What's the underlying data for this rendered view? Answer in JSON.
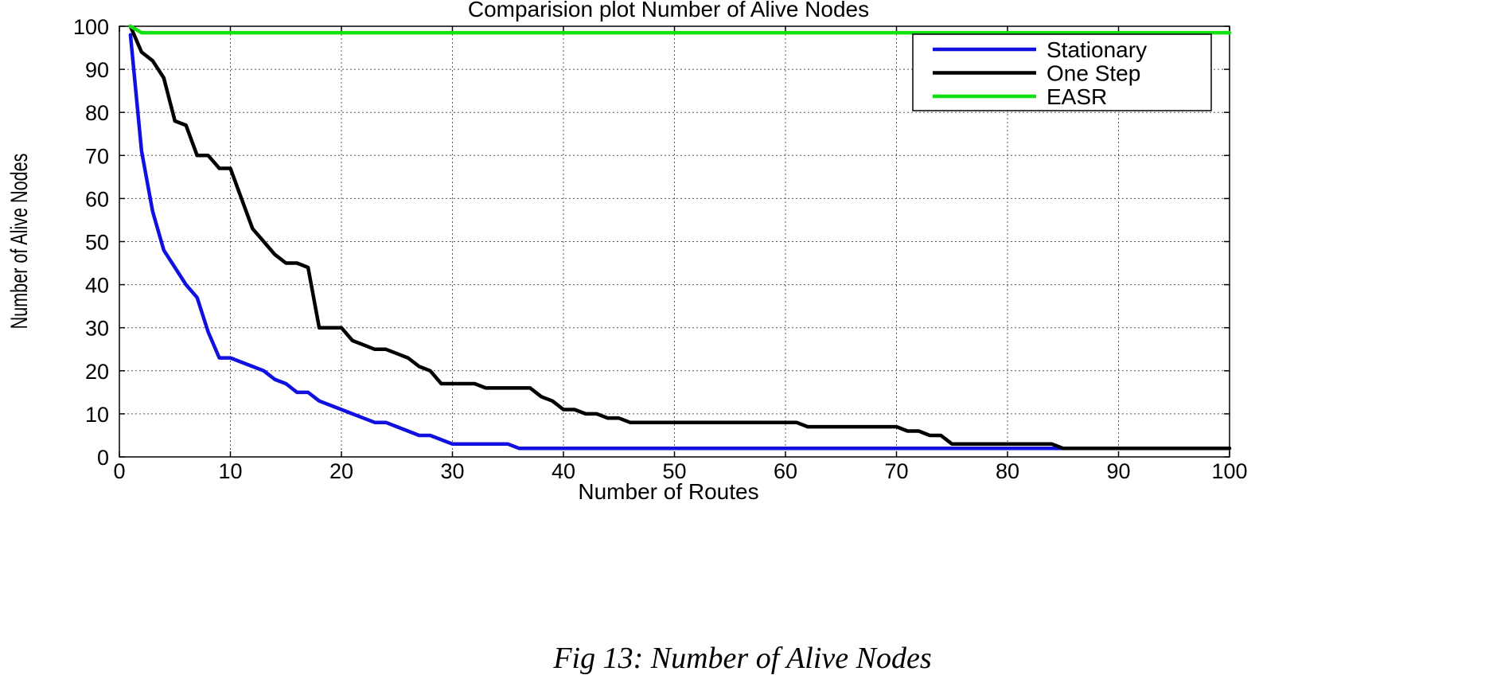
{
  "caption": "Fig 13: Number of Alive Nodes",
  "chart_data": {
    "type": "line",
    "title": "Comparision plot Number of Alive Nodes",
    "xlabel": "Number of Routes",
    "ylabel": "Number of Alive Nodes",
    "xlim": [
      0,
      100
    ],
    "ylim": [
      0,
      100
    ],
    "xticks": [
      0,
      10,
      20,
      30,
      40,
      50,
      60,
      70,
      80,
      90,
      100
    ],
    "yticks": [
      0,
      10,
      20,
      30,
      40,
      50,
      60,
      70,
      80,
      90,
      100
    ],
    "grid": true,
    "legend_position": "top-right",
    "series": [
      {
        "name": "Stationary",
        "color": "#1010e0",
        "points": [
          [
            1,
            98
          ],
          [
            2,
            71
          ],
          [
            3,
            57
          ],
          [
            4,
            48
          ],
          [
            5,
            44
          ],
          [
            6,
            40
          ],
          [
            7,
            37
          ],
          [
            8,
            29
          ],
          [
            9,
            23
          ],
          [
            10,
            23
          ],
          [
            11,
            22
          ],
          [
            12,
            21
          ],
          [
            13,
            20
          ],
          [
            14,
            18
          ],
          [
            15,
            17
          ],
          [
            16,
            15
          ],
          [
            17,
            15
          ],
          [
            18,
            13
          ],
          [
            19,
            12
          ],
          [
            20,
            11
          ],
          [
            21,
            10
          ],
          [
            22,
            9
          ],
          [
            23,
            8
          ],
          [
            24,
            8
          ],
          [
            25,
            7
          ],
          [
            26,
            6
          ],
          [
            27,
            5
          ],
          [
            28,
            5
          ],
          [
            29,
            4
          ],
          [
            30,
            3
          ],
          [
            31,
            3
          ],
          [
            35,
            3
          ],
          [
            36,
            2
          ],
          [
            100,
            2
          ]
        ]
      },
      {
        "name": "One Step",
        "color": "#000000",
        "points": [
          [
            1,
            100
          ],
          [
            2,
            94
          ],
          [
            3,
            92
          ],
          [
            4,
            88
          ],
          [
            5,
            78
          ],
          [
            6,
            77
          ],
          [
            7,
            70
          ],
          [
            8,
            70
          ],
          [
            9,
            67
          ],
          [
            10,
            67
          ],
          [
            11,
            60
          ],
          [
            12,
            53
          ],
          [
            13,
            50
          ],
          [
            14,
            47
          ],
          [
            15,
            45
          ],
          [
            16,
            45
          ],
          [
            17,
            44
          ],
          [
            18,
            30
          ],
          [
            19,
            30
          ],
          [
            20,
            30
          ],
          [
            21,
            27
          ],
          [
            22,
            26
          ],
          [
            23,
            25
          ],
          [
            24,
            25
          ],
          [
            25,
            24
          ],
          [
            26,
            23
          ],
          [
            27,
            21
          ],
          [
            28,
            20
          ],
          [
            29,
            17
          ],
          [
            30,
            17
          ],
          [
            32,
            17
          ],
          [
            33,
            16
          ],
          [
            37,
            16
          ],
          [
            38,
            14
          ],
          [
            39,
            13
          ],
          [
            40,
            11
          ],
          [
            41,
            11
          ],
          [
            42,
            10
          ],
          [
            43,
            10
          ],
          [
            44,
            9
          ],
          [
            45,
            9
          ],
          [
            46,
            8
          ],
          [
            61,
            8
          ],
          [
            62,
            7
          ],
          [
            70,
            7
          ],
          [
            71,
            6
          ],
          [
            72,
            6
          ],
          [
            73,
            5
          ],
          [
            74,
            5
          ],
          [
            75,
            3
          ],
          [
            84,
            3
          ],
          [
            85,
            2
          ],
          [
            100,
            2
          ]
        ]
      },
      {
        "name": "EASR",
        "color": "#10e010",
        "points": [
          [
            1,
            100
          ],
          [
            2,
            98.5
          ],
          [
            100,
            98.5
          ]
        ]
      }
    ]
  }
}
